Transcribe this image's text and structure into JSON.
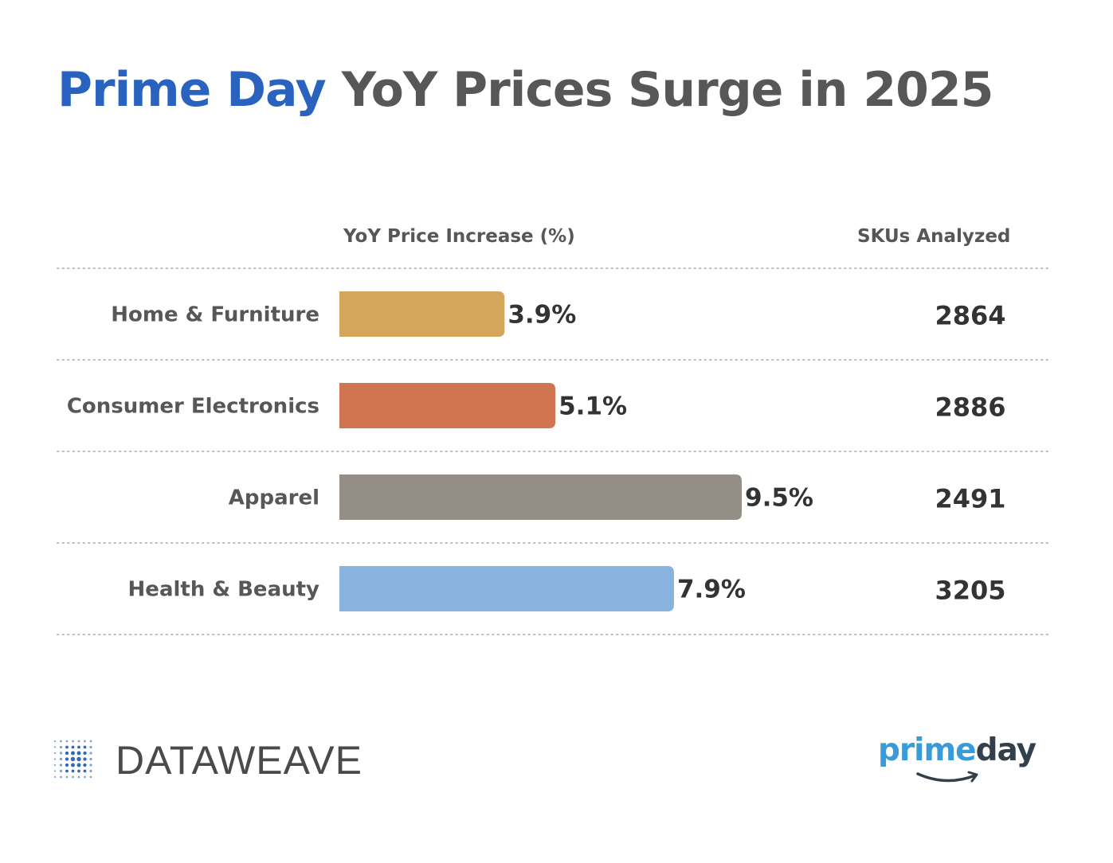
{
  "header": {
    "title_brand": "Prime Day",
    "title_rest": "YoY Prices Surge in 2025"
  },
  "columns": {
    "bar_header": "YoY Price Increase (%)",
    "sku_header": "SKUs Analyzed"
  },
  "chart_data": {
    "type": "bar",
    "orientation": "horizontal",
    "title": "Prime Day YoY Prices Surge in 2025",
    "xlabel": "YoY Price Increase (%)",
    "categories": [
      "Home & Furniture",
      "Consumer Electronics",
      "Apparel",
      "Health & Beauty"
    ],
    "values": [
      3.9,
      5.1,
      9.5,
      7.9
    ],
    "value_labels": [
      "3.9%",
      "5.1%",
      "9.5%",
      "7.9%"
    ],
    "bar_colors": [
      "#d4a65c",
      "#d17550",
      "#958e86",
      "#88b3df"
    ],
    "skus_analyzed": [
      2864,
      2886,
      2491,
      3205
    ],
    "xlim": [
      0,
      9.5
    ],
    "grid": "dotted row separators",
    "legend": "none"
  },
  "footer": {
    "left_logo_text": "DATAWEAVE",
    "right_logo_prime": "prime",
    "right_logo_day": "day"
  },
  "colors": {
    "brand_blue": "#2a62bf",
    "heading_gray": "#575757",
    "value_dark": "#333333"
  }
}
